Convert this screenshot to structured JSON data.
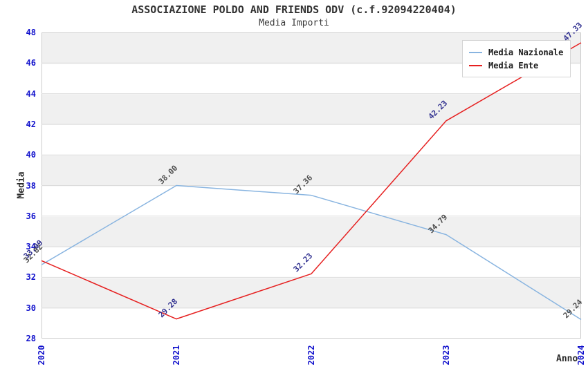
{
  "figure": {
    "background": "#ffffff",
    "band_color": "#f0f0f0",
    "band_alt_color": "#ffffff",
    "plot_border_color": "#cccccc",
    "grid_line_color": "#dcdcdc",
    "tick_label_color": "#1111cc",
    "axis_title_color": "#2b2b2b",
    "title_color": "#333333"
  },
  "chart_data": {
    "type": "line",
    "title": "ASSOCIAZIONE POLDO AND FRIENDS ODV (c.f.92094220404)",
    "subtitle": "Media Importi",
    "xlabel": "Anno",
    "ylabel": "Media",
    "categories": [
      "2020",
      "2021",
      "2022",
      "2023",
      "2024"
    ],
    "ylim": [
      28,
      48
    ],
    "yticks": [
      28,
      30,
      32,
      34,
      36,
      38,
      40,
      42,
      44,
      46,
      48
    ],
    "grid": "horizontal-bands-every-2-units",
    "legend_position": "top-right-inside",
    "point_label_rotation_deg": -45,
    "series": [
      {
        "name": "Media Nazionale",
        "color": "#88b4e0",
        "label_color": "#4d4d4d",
        "values": [
          32.82,
          38.0,
          37.36,
          34.79,
          29.24
        ],
        "point_labels": [
          "32.82",
          "38.00",
          "37.36",
          "34.79",
          "29.24"
        ]
      },
      {
        "name": "Media Ente",
        "color": "#e62020",
        "label_color": "#2f2f8f",
        "values": [
          33.09,
          29.28,
          32.23,
          42.23,
          47.33
        ],
        "point_labels": [
          "33.09",
          "29.28",
          "32.23",
          "42.23",
          "47.33"
        ]
      }
    ]
  }
}
